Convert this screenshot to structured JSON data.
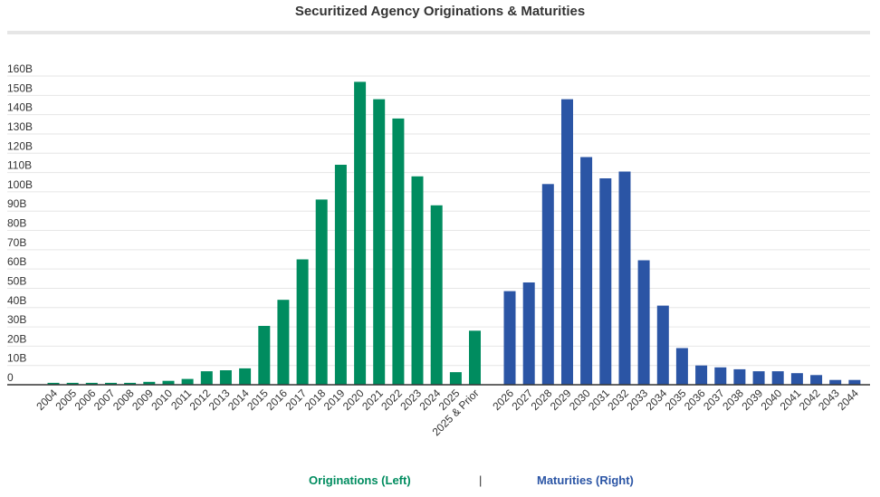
{
  "chart_data": {
    "type": "bar",
    "title": "Securitized Agency Originations & Maturities",
    "ylim": [
      0,
      160
    ],
    "yticks": [
      "0",
      "10B",
      "20B",
      "30B",
      "40B",
      "50B",
      "60B",
      "70B",
      "80B",
      "90B",
      "100B",
      "110B",
      "120B",
      "130B",
      "140B",
      "150B",
      "160B"
    ],
    "grid": true,
    "legend_position": "bottom-center",
    "legend_separator": "|",
    "series": [
      {
        "name": "Originations (Left)",
        "color": "#008c5f",
        "categories": [
          "2004",
          "2005",
          "2006",
          "2007",
          "2008",
          "2009",
          "2010",
          "2011",
          "2012",
          "2013",
          "2014",
          "2015",
          "2016",
          "2017",
          "2018",
          "2019",
          "2020",
          "2021",
          "2022",
          "2023",
          "2024",
          "2025",
          "2025 & Prior"
        ],
        "values": [
          1,
          1,
          1,
          1,
          1,
          1.5,
          2,
          3,
          7,
          7.5,
          8.5,
          30.5,
          44,
          65,
          96,
          114,
          157,
          148,
          138,
          108,
          93,
          6.5,
          28
        ]
      },
      {
        "name": "Maturities (Right)",
        "color": "#2b55a5",
        "categories": [
          "2026",
          "2027",
          "2028",
          "2029",
          "2030",
          "2031",
          "2032",
          "2033",
          "2034",
          "2035",
          "2036",
          "2037",
          "2038",
          "2039",
          "2040",
          "2041",
          "2042",
          "2043",
          "2044"
        ],
        "values": [
          48.5,
          53,
          104,
          148,
          118,
          107,
          110.5,
          64.5,
          41,
          19,
          10,
          9,
          8,
          7,
          7,
          6,
          5,
          2.5,
          2.5
        ]
      }
    ]
  }
}
